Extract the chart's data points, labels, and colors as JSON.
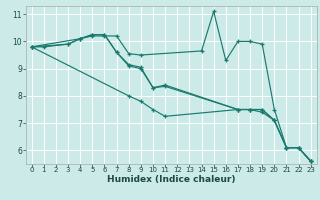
{
  "xlabel": "Humidex (Indice chaleur)",
  "bg_color": "#cceae8",
  "line_color": "#1a7a6e",
  "grid_color": "#ffffff",
  "xlim": [
    -0.5,
    23.5
  ],
  "ylim": [
    5.5,
    11.3
  ],
  "xticks": [
    0,
    1,
    2,
    3,
    4,
    5,
    6,
    7,
    8,
    9,
    10,
    11,
    12,
    13,
    14,
    15,
    16,
    17,
    18,
    19,
    20,
    21,
    22,
    23
  ],
  "yticks": [
    6,
    7,
    8,
    9,
    10,
    11
  ],
  "lines": [
    {
      "x": [
        0,
        1,
        3,
        4,
        5,
        6,
        7,
        8,
        9,
        14,
        15,
        16,
        17,
        18,
        19,
        20,
        21,
        22,
        23
      ],
      "y": [
        9.8,
        9.8,
        9.9,
        10.1,
        10.2,
        10.2,
        10.2,
        9.55,
        9.5,
        9.65,
        11.1,
        9.3,
        10.0,
        10.0,
        9.9,
        7.5,
        6.1,
        6.1,
        5.6
      ]
    },
    {
      "x": [
        0,
        3,
        4,
        5,
        6,
        7,
        8,
        9,
        10,
        11,
        17,
        18,
        19,
        20,
        21,
        22,
        23
      ],
      "y": [
        9.8,
        9.9,
        10.1,
        10.25,
        10.25,
        9.6,
        9.1,
        9.0,
        8.3,
        8.4,
        7.5,
        7.5,
        7.5,
        7.1,
        6.1,
        6.1,
        5.6
      ]
    },
    {
      "x": [
        0,
        4,
        5,
        6,
        7,
        8,
        9,
        10,
        11,
        17,
        18,
        19,
        20,
        21,
        22,
        23
      ],
      "y": [
        9.8,
        10.1,
        10.25,
        10.25,
        9.6,
        9.15,
        9.05,
        8.3,
        8.35,
        7.5,
        7.5,
        7.5,
        7.1,
        6.1,
        6.1,
        5.6
      ]
    },
    {
      "x": [
        0,
        8,
        9,
        10,
        11,
        17,
        18,
        19,
        20,
        21,
        22,
        23
      ],
      "y": [
        9.8,
        8.0,
        7.8,
        7.5,
        7.25,
        7.5,
        7.5,
        7.4,
        7.1,
        6.1,
        6.1,
        5.6
      ]
    }
  ]
}
